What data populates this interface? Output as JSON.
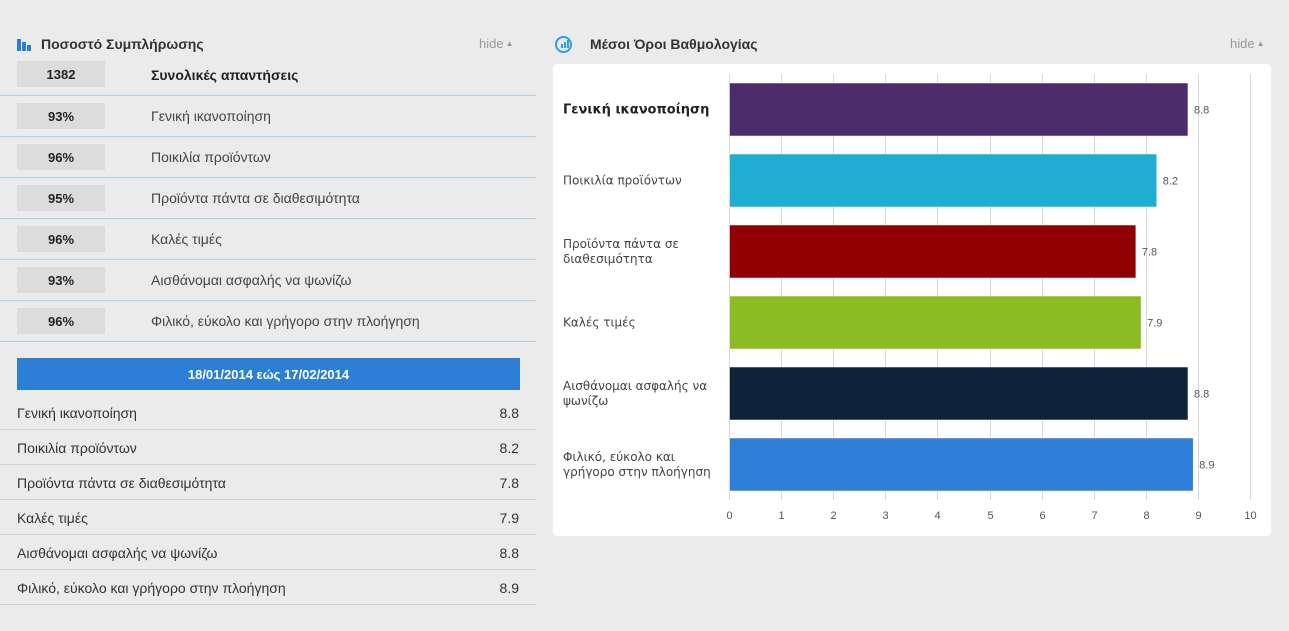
{
  "left_panel": {
    "title": "Ποσοστό Συμπλήρωσης",
    "icon": "bar-chart-icon",
    "hide_label": "hide",
    "total": {
      "value": "1382",
      "label": "Συνολικές απαντήσεις"
    },
    "stats": [
      {
        "value": "93%",
        "label": "Γενική ικανοποίηση"
      },
      {
        "value": "96%",
        "label": "Ποικιλία προϊόντων"
      },
      {
        "value": "95%",
        "label": "Προϊόντα πάντα σε διαθεσιμότητα"
      },
      {
        "value": "96%",
        "label": "Καλές τιμές"
      },
      {
        "value": "93%",
        "label": "Αισθάνομαι ασφαλής να ψωνίζω"
      },
      {
        "value": "96%",
        "label": "Φιλικό, εύκολο και γρήγορο στην πλοήγηση"
      }
    ],
    "date_range": "18/01/2014 εώς 17/02/2014",
    "averages": [
      {
        "label": "Γενική ικανοποίηση",
        "value": "8.8"
      },
      {
        "label": "Ποικιλία προϊόντων",
        "value": "8.2"
      },
      {
        "label": "Προϊόντα πάντα σε διαθεσιμότητα",
        "value": "7.8"
      },
      {
        "label": "Καλές τιμές",
        "value": "7.9"
      },
      {
        "label": "Αισθάνομαι ασφαλής να ψωνίζω",
        "value": "8.8"
      },
      {
        "label": "Φιλικό, εύκολο και γρήγορο στην πλοήγηση",
        "value": "8.9"
      }
    ]
  },
  "right_panel": {
    "title": "Μέσοι Όροι Βαθμολογίας",
    "icon": "gauge-chart-icon",
    "hide_label": "hide"
  },
  "colors": {
    "accent": "#2d7fd6",
    "background": "#ebebeb"
  },
  "chart_data": {
    "type": "bar",
    "orientation": "horizontal",
    "categories": [
      [
        "Γενική ικανοποίηση"
      ],
      [
        "Ποικιλία προϊόντων"
      ],
      [
        "Προϊόντα πάντα σε",
        "διαθεσιμότητα"
      ],
      [
        "Καλές τιμές"
      ],
      [
        "Αισθάνομαι ασφαλής να",
        "ψωνίζω"
      ],
      [
        "Φιλικό, εύκολο και",
        "γρήγορο στην πλοήγηση"
      ]
    ],
    "values": [
      8.8,
      8.2,
      7.8,
      7.9,
      8.8,
      8.9
    ],
    "bar_colors": [
      "#4b2d6e",
      "#1fadd1",
      "#910000",
      "#8bbc21",
      "#0d233a",
      "#2f7ed8"
    ],
    "xlim": [
      0,
      10
    ],
    "xticks": [
      0,
      1,
      2,
      3,
      4,
      5,
      6,
      7,
      8,
      9,
      10
    ],
    "grid": true,
    "data_labels": true,
    "highlighted_category": 0
  }
}
